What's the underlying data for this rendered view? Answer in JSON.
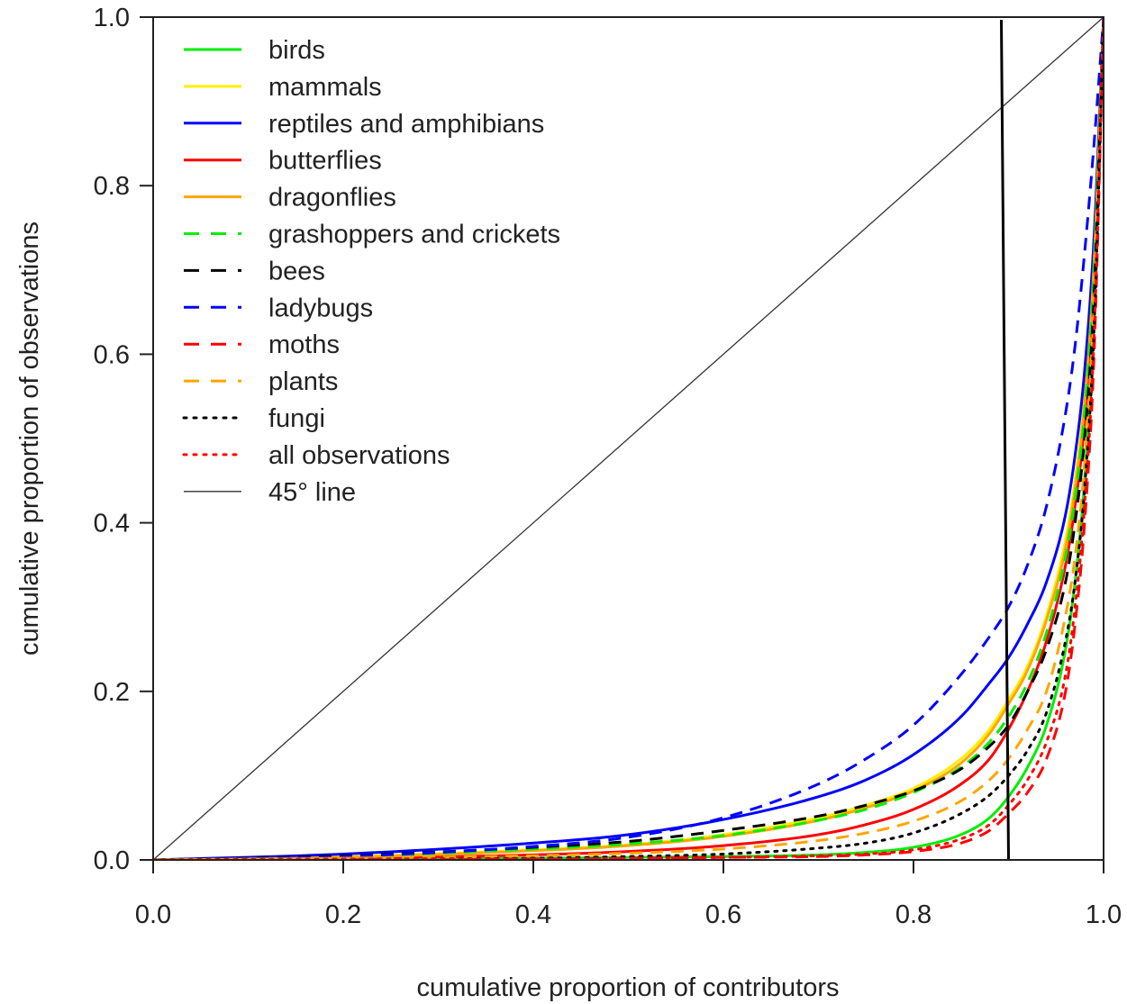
{
  "chart_data": {
    "type": "line",
    "title": "",
    "xlabel": "cumulative proportion of contributors",
    "ylabel": "cumulative proportion of observations",
    "xlim": [
      0,
      1
    ],
    "ylim": [
      0,
      1
    ],
    "xticks": [
      "0.0",
      "0.2",
      "0.4",
      "0.6",
      "0.8",
      "1.0"
    ],
    "yticks": [
      "0.0",
      "0.2",
      "0.4",
      "0.6",
      "0.8",
      "1.0"
    ],
    "grid": false,
    "legend_position": "top-left",
    "vertical_line_x": 0.9,
    "series": [
      {
        "name": "birds",
        "color": "#00ee00",
        "dash": "solid",
        "x": [
          0,
          0.2,
          0.4,
          0.5,
          0.6,
          0.7,
          0.75,
          0.8,
          0.85,
          0.88,
          0.9,
          0.92,
          0.94,
          0.96,
          0.97,
          0.98,
          0.99,
          1.0
        ],
        "y": [
          0,
          0.001,
          0.002,
          0.003,
          0.004,
          0.006,
          0.009,
          0.015,
          0.03,
          0.05,
          0.075,
          0.11,
          0.16,
          0.25,
          0.33,
          0.45,
          0.65,
          1.0
        ]
      },
      {
        "name": "mammals",
        "color": "#ffee00",
        "dash": "solid",
        "x": [
          0,
          0.2,
          0.4,
          0.5,
          0.6,
          0.7,
          0.75,
          0.8,
          0.85,
          0.88,
          0.9,
          0.92,
          0.94,
          0.96,
          0.97,
          0.98,
          0.99,
          1.0
        ],
        "y": [
          0,
          0.004,
          0.012,
          0.018,
          0.03,
          0.05,
          0.065,
          0.085,
          0.12,
          0.155,
          0.19,
          0.23,
          0.29,
          0.38,
          0.45,
          0.55,
          0.72,
          1.0
        ]
      },
      {
        "name": "reptiles and amphibians",
        "color": "#0000ff",
        "dash": "solid",
        "x": [
          0,
          0.2,
          0.4,
          0.5,
          0.6,
          0.7,
          0.75,
          0.8,
          0.85,
          0.88,
          0.9,
          0.92,
          0.94,
          0.96,
          0.97,
          0.98,
          0.99,
          1.0
        ],
        "y": [
          0,
          0.007,
          0.02,
          0.03,
          0.048,
          0.075,
          0.095,
          0.125,
          0.17,
          0.21,
          0.24,
          0.28,
          0.33,
          0.41,
          0.48,
          0.58,
          0.74,
          1.0
        ]
      },
      {
        "name": "butterflies",
        "color": "#ff0000",
        "dash": "solid",
        "x": [
          0,
          0.2,
          0.4,
          0.5,
          0.6,
          0.7,
          0.75,
          0.8,
          0.85,
          0.88,
          0.9,
          0.92,
          0.94,
          0.96,
          0.97,
          0.98,
          0.99,
          1.0
        ],
        "y": [
          0,
          0.002,
          0.006,
          0.01,
          0.017,
          0.03,
          0.042,
          0.06,
          0.09,
          0.12,
          0.155,
          0.2,
          0.26,
          0.35,
          0.42,
          0.52,
          0.7,
          1.0
        ]
      },
      {
        "name": "dragonflies",
        "color": "#ffa500",
        "dash": "solid",
        "x": [
          0,
          0.2,
          0.4,
          0.5,
          0.6,
          0.7,
          0.75,
          0.8,
          0.85,
          0.88,
          0.9,
          0.92,
          0.94,
          0.96,
          0.97,
          0.98,
          0.99,
          1.0
        ],
        "y": [
          0,
          0.003,
          0.011,
          0.017,
          0.028,
          0.047,
          0.062,
          0.082,
          0.115,
          0.15,
          0.185,
          0.225,
          0.285,
          0.37,
          0.44,
          0.54,
          0.71,
          1.0
        ]
      },
      {
        "name": "grashoppers and crickets",
        "color": "#00ee00",
        "dash": "dashed",
        "x": [
          0,
          0.2,
          0.4,
          0.5,
          0.6,
          0.7,
          0.75,
          0.8,
          0.85,
          0.88,
          0.9,
          0.92,
          0.94,
          0.96,
          0.97,
          0.98,
          0.99,
          1.0
        ],
        "y": [
          0,
          0.004,
          0.013,
          0.019,
          0.029,
          0.047,
          0.06,
          0.08,
          0.11,
          0.14,
          0.17,
          0.21,
          0.27,
          0.36,
          0.43,
          0.53,
          0.7,
          1.0
        ]
      },
      {
        "name": "bees",
        "color": "#000000",
        "dash": "dashed",
        "x": [
          0,
          0.2,
          0.4,
          0.5,
          0.6,
          0.7,
          0.75,
          0.8,
          0.85,
          0.88,
          0.9,
          0.92,
          0.94,
          0.96,
          0.97,
          0.98,
          0.99,
          1.0
        ],
        "y": [
          0,
          0.005,
          0.015,
          0.022,
          0.035,
          0.052,
          0.065,
          0.082,
          0.108,
          0.135,
          0.16,
          0.2,
          0.25,
          0.33,
          0.4,
          0.5,
          0.67,
          1.0
        ]
      },
      {
        "name": "ladybugs",
        "color": "#0000ff",
        "dash": "dashed",
        "x": [
          0,
          0.2,
          0.4,
          0.5,
          0.6,
          0.7,
          0.75,
          0.8,
          0.85,
          0.88,
          0.9,
          0.92,
          0.94,
          0.96,
          0.97,
          0.98,
          0.99,
          1.0
        ],
        "y": [
          0,
          0.004,
          0.016,
          0.027,
          0.05,
          0.09,
          0.12,
          0.16,
          0.22,
          0.265,
          0.3,
          0.35,
          0.42,
          0.53,
          0.61,
          0.72,
          0.85,
          1.0
        ]
      },
      {
        "name": "moths",
        "color": "#ff0000",
        "dash": "dashed",
        "x": [
          0,
          0.2,
          0.4,
          0.5,
          0.6,
          0.7,
          0.75,
          0.8,
          0.85,
          0.88,
          0.9,
          0.92,
          0.94,
          0.96,
          0.97,
          0.98,
          0.99,
          1.0
        ],
        "y": [
          0,
          0.001,
          0.001,
          0.002,
          0.003,
          0.004,
          0.006,
          0.01,
          0.02,
          0.035,
          0.055,
          0.08,
          0.12,
          0.2,
          0.28,
          0.4,
          0.6,
          1.0
        ]
      },
      {
        "name": "plants",
        "color": "#ffa500",
        "dash": "dashed",
        "x": [
          0,
          0.2,
          0.4,
          0.5,
          0.6,
          0.7,
          0.75,
          0.8,
          0.85,
          0.88,
          0.9,
          0.92,
          0.94,
          0.96,
          0.97,
          0.98,
          0.99,
          1.0
        ],
        "y": [
          0,
          0.002,
          0.005,
          0.008,
          0.013,
          0.023,
          0.032,
          0.046,
          0.07,
          0.095,
          0.12,
          0.155,
          0.2,
          0.29,
          0.36,
          0.47,
          0.66,
          1.0
        ]
      },
      {
        "name": "fungi",
        "color": "#000000",
        "dash": "dotted",
        "x": [
          0,
          0.2,
          0.4,
          0.5,
          0.6,
          0.7,
          0.75,
          0.8,
          0.85,
          0.88,
          0.9,
          0.92,
          0.94,
          0.96,
          0.97,
          0.98,
          0.99,
          1.0
        ],
        "y": [
          0,
          0.001,
          0.002,
          0.004,
          0.007,
          0.014,
          0.02,
          0.032,
          0.055,
          0.077,
          0.1,
          0.13,
          0.175,
          0.26,
          0.33,
          0.44,
          0.63,
          1.0
        ]
      },
      {
        "name": "all observations",
        "color": "#ff0000",
        "dash": "dotted",
        "x": [
          0,
          0.2,
          0.4,
          0.5,
          0.6,
          0.7,
          0.75,
          0.8,
          0.85,
          0.88,
          0.9,
          0.92,
          0.94,
          0.96,
          0.97,
          0.98,
          0.99,
          1.0
        ],
        "y": [
          0,
          0.001,
          0.001,
          0.002,
          0.003,
          0.005,
          0.007,
          0.012,
          0.025,
          0.042,
          0.065,
          0.095,
          0.14,
          0.22,
          0.3,
          0.42,
          0.62,
          1.0
        ]
      },
      {
        "name": "45° line",
        "color": "#333333",
        "dash": "solid",
        "thin": true,
        "x": [
          0,
          1
        ],
        "y": [
          0,
          1
        ]
      }
    ]
  }
}
